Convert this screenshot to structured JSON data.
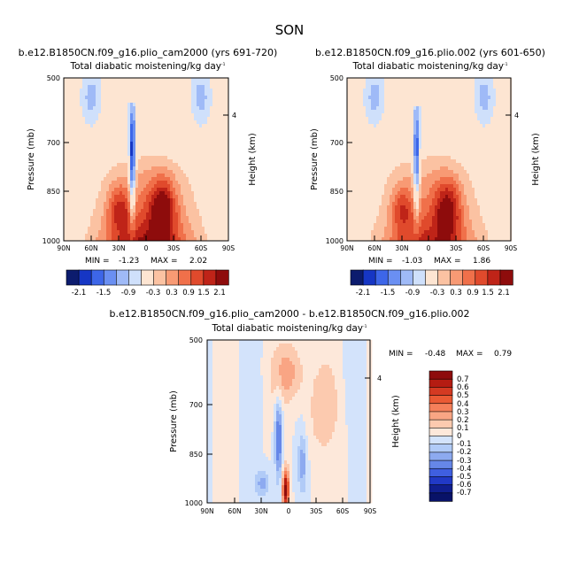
{
  "figure_title": "SON",
  "chart_data": [
    {
      "type": "heatmap",
      "title": "b.e12.B1850CN.f09_g16.plio_cam2000 (yrs 691-720)",
      "subtitle": "Total diabatic moistening/kg day",
      "subtitle_sup": "-1",
      "ylabel": "Pressure (mb)",
      "ylabel_right": "Height (km)",
      "xticks": [
        "90N",
        "60N",
        "30N",
        "0",
        "30S",
        "60S",
        "90S"
      ],
      "yticks": [
        500,
        700,
        850,
        1000
      ],
      "right_ticks": [
        "4"
      ],
      "xlim": [
        90,
        -90
      ],
      "ylim": [
        1000,
        500
      ],
      "stats": {
        "min_label": "MIN =",
        "min": "-1.23",
        "max_label": "MAX =",
        "max": "2.02"
      },
      "colorbar_labels": [
        "-2.1",
        "-1.5",
        "-0.9",
        "-0.3",
        "0.3",
        "0.9",
        "1.5",
        "2.1"
      ],
      "fields": {
        "min": -1.23,
        "max": 2.02,
        "peak_lat": -18,
        "core_lat": 15,
        "core_top": 580,
        "core_strength": -1.2
      }
    },
    {
      "type": "heatmap",
      "title": "b.e12.B1850CN.f09_g16.plio.002 (yrs 601-650)",
      "subtitle": "Total diabatic moistening/kg day",
      "subtitle_sup": "-1",
      "ylabel": "Pressure (mb)",
      "ylabel_right": "Height (km)",
      "xticks": [
        "90N",
        "60N",
        "30N",
        "0",
        "30S",
        "60S",
        "90S"
      ],
      "yticks": [
        500,
        700,
        850,
        1000
      ],
      "right_ticks": [
        "4"
      ],
      "xlim": [
        90,
        -90
      ],
      "ylim": [
        1000,
        500
      ],
      "stats": {
        "min_label": "MIN =",
        "min": "-1.03",
        "max_label": "MAX =",
        "max": "1.86"
      },
      "colorbar_labels": [
        "-2.1",
        "-1.5",
        "-0.9",
        "-0.3",
        "0.3",
        "0.9",
        "1.5",
        "2.1"
      ],
      "fields": {
        "min": -1.03,
        "max": 1.86,
        "peak_lat": -20,
        "core_lat": 14,
        "core_top": 585,
        "core_strength": -1.0
      }
    },
    {
      "type": "heatmap",
      "title": "b.e12.B1850CN.f09_g16.plio_cam2000 - b.e12.B1850CN.f09_g16.plio.002",
      "subtitle": "Total diabatic moistening/kg day",
      "subtitle_sup": "-1",
      "ylabel": "Pressure (mb)",
      "ylabel_right": "Height (km)",
      "xticks": [
        "90N",
        "60N",
        "30N",
        "0",
        "30S",
        "60S",
        "90S"
      ],
      "yticks": [
        500,
        700,
        850,
        1000
      ],
      "right_ticks": [
        "4"
      ],
      "xlim": [
        90,
        -90
      ],
      "ylim": [
        1000,
        500
      ],
      "stats": {
        "min_label": "MIN =",
        "min": "-0.48",
        "max_label": "MAX =",
        "max": "0.79"
      },
      "colorbar_labels": [
        "0.7",
        "0.6",
        "0.5",
        "0.4",
        "0.3",
        "0.2",
        "0.1",
        "0",
        "-0.1",
        "-0.2",
        "-0.3",
        "-0.4",
        "-0.5",
        "-0.6",
        "-0.7"
      ],
      "fields": {
        "min": -0.48,
        "max": 0.79,
        "peak_lat": 0,
        "core_lat": 12,
        "core_top": 620,
        "core_strength": -0.45
      }
    }
  ],
  "colorbar_top": [
    "#0c1c6e",
    "#1636c4",
    "#3d66e8",
    "#6a8ff2",
    "#9fbaf7",
    "#cfe0fb",
    "#fde5d2",
    "#fbc2a2",
    "#f89a74",
    "#f0704a",
    "#e04a2c",
    "#bf2418",
    "#8e0c0c"
  ],
  "colorbar_diff": [
    "#8e0c0c",
    "#b51c12",
    "#d43a22",
    "#ea5a34",
    "#f5805a",
    "#f9a584",
    "#fccaaf",
    "#fde8da",
    "#d3e3fb",
    "#b1cbf7",
    "#8daaf0",
    "#6687e8",
    "#3f5fe0",
    "#2139c6",
    "#101e8f",
    "#081268"
  ]
}
